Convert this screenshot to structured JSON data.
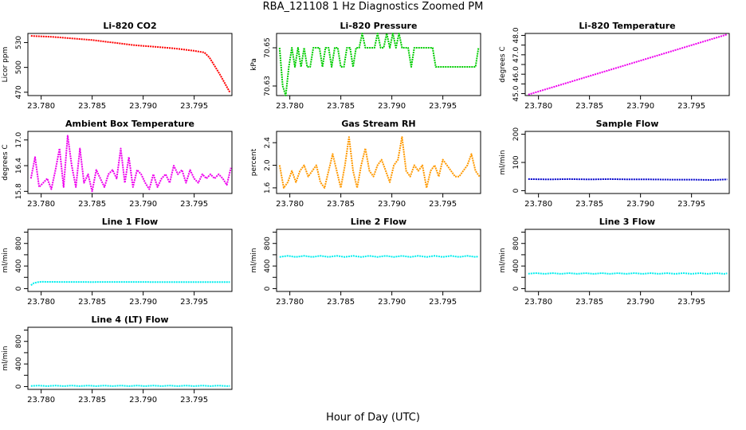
{
  "figure": {
    "title": "RBA_121108  1 Hz Diagnostics Zoomed PM",
    "xlabel": "Hour of Day (UTC)"
  },
  "chart_data": [
    {
      "id": "co2",
      "type": "line",
      "title": "Li-820 CO2",
      "ylabel": "Licor ppm",
      "color": "#ff0000",
      "xlim": [
        23.7787,
        23.7987
      ],
      "ylim": [
        466,
        541
      ],
      "xticks": [
        23.78,
        23.785,
        23.79,
        23.795
      ],
      "xtick_labels": [
        "23.780",
        "23.785",
        "23.790",
        "23.795"
      ],
      "yticks": [
        470,
        500,
        530
      ],
      "ytick_labels": [
        "470",
        "500",
        "530"
      ],
      "series": [
        {
          "name": "CO2",
          "x": [
            23.779,
            23.781,
            23.783,
            23.785,
            23.787,
            23.789,
            23.791,
            23.793,
            23.795,
            23.796,
            23.7965,
            23.797,
            23.7975,
            23.798,
            23.7985
          ],
          "y": [
            538,
            537,
            535,
            533,
            530,
            527,
            525,
            523,
            520,
            518,
            512,
            502,
            492,
            481,
            470
          ]
        }
      ]
    },
    {
      "id": "pressure",
      "type": "line",
      "title": "Li-820 Pressure",
      "ylabel": "kPa",
      "color": "#00cc00",
      "xlim": [
        23.7787,
        23.7987
      ],
      "ylim": [
        70.625,
        70.6575
      ],
      "xticks": [
        23.78,
        23.785,
        23.79,
        23.795
      ],
      "xtick_labels": [
        "23.780",
        "23.785",
        "23.790",
        "23.795"
      ],
      "yticks": [
        70.63,
        70.65
      ],
      "ytick_labels": [
        "70.63",
        "70.65"
      ],
      "series": [
        {
          "name": "Pressure",
          "x": [
            23.779,
            23.7793,
            23.7796,
            23.7799,
            23.7802,
            23.7805,
            23.7808,
            23.7811,
            23.7814,
            23.7817,
            23.782,
            23.7823,
            23.7826,
            23.7829,
            23.7832,
            23.7835,
            23.7838,
            23.7841,
            23.7844,
            23.7847,
            23.785,
            23.7853,
            23.7856,
            23.7859,
            23.7862,
            23.7865,
            23.7868,
            23.7871,
            23.7874,
            23.7877,
            23.788,
            23.7883,
            23.7886,
            23.7889,
            23.7892,
            23.7895,
            23.7898,
            23.7901,
            23.7904,
            23.7907,
            23.791,
            23.7913,
            23.7916,
            23.7919,
            23.7922,
            23.7925,
            23.7928,
            23.7931,
            23.7934,
            23.7937,
            23.794,
            23.7943,
            23.7946,
            23.7949,
            23.7952,
            23.7955,
            23.7958,
            23.7961,
            23.7964,
            23.7967,
            23.797,
            23.7973,
            23.7976,
            23.7979,
            23.7982,
            23.7985
          ],
          "y": [
            70.65,
            70.63,
            70.625,
            70.64,
            70.65,
            70.64,
            70.65,
            70.64,
            70.65,
            70.64,
            70.64,
            70.65,
            70.65,
            70.65,
            70.64,
            70.65,
            70.65,
            70.64,
            70.65,
            70.65,
            70.64,
            70.64,
            70.65,
            70.65,
            70.64,
            70.65,
            70.65,
            70.6575,
            70.65,
            70.65,
            70.65,
            70.65,
            70.6575,
            70.65,
            70.65,
            70.6575,
            70.65,
            70.6575,
            70.65,
            70.6575,
            70.65,
            70.65,
            70.65,
            70.64,
            70.65,
            70.65,
            70.65,
            70.65,
            70.65,
            70.65,
            70.65,
            70.64,
            70.64,
            70.64,
            70.64,
            70.64,
            70.64,
            70.64,
            70.64,
            70.64,
            70.64,
            70.64,
            70.64,
            70.64,
            70.64,
            70.65
          ]
        }
      ]
    },
    {
      "id": "temperature",
      "type": "line",
      "title": "Li-820 Temperature",
      "ylabel": "degrees C",
      "color": "#ee00ee",
      "xlim": [
        23.7787,
        23.7987
      ],
      "ylim": [
        44.9,
        48.1
      ],
      "xticks": [
        23.78,
        23.785,
        23.79,
        23.795
      ],
      "xtick_labels": [
        "23.780",
        "23.785",
        "23.790",
        "23.795"
      ],
      "yticks": [
        45.0,
        45.5,
        46.0,
        46.5,
        47.0,
        47.5,
        48.0
      ],
      "ytick_labels": [
        "45.0",
        "",
        "46.0",
        "",
        "47.0",
        "",
        "48.0"
      ],
      "series": [
        {
          "name": "Temperature",
          "x": [
            23.779,
            23.7985
          ],
          "y": [
            44.95,
            48.05
          ]
        }
      ]
    },
    {
      "id": "ambient",
      "type": "line",
      "title": "Ambient Box Temperature",
      "ylabel": "degrees C",
      "color": "#ee00ee",
      "xlim": [
        23.7787,
        23.7987
      ],
      "ylim": [
        15.75,
        17.2
      ],
      "xticks": [
        23.78,
        23.785,
        23.79,
        23.795
      ],
      "xtick_labels": [
        "23.780",
        "23.785",
        "23.790",
        "23.795"
      ],
      "yticks": [
        15.8,
        16.4,
        17.0
      ],
      "ytick_labels": [
        "15.8",
        "16.4",
        "17.0"
      ],
      "series": [
        {
          "name": "Ambient",
          "x": [
            23.779,
            23.7794,
            23.7798,
            23.7802,
            23.7806,
            23.781,
            23.7814,
            23.7818,
            23.7822,
            23.7826,
            23.783,
            23.7834,
            23.7838,
            23.7842,
            23.7846,
            23.785,
            23.7854,
            23.7858,
            23.7862,
            23.7866,
            23.787,
            23.7874,
            23.7878,
            23.7882,
            23.7886,
            23.789,
            23.7894,
            23.7898,
            23.7902,
            23.7906,
            23.791,
            23.7914,
            23.7918,
            23.7922,
            23.7926,
            23.793,
            23.7934,
            23.7938,
            23.7942,
            23.7946,
            23.795,
            23.7954,
            23.7958,
            23.7962,
            23.7966,
            23.797,
            23.7974,
            23.7978,
            23.7982,
            23.7986
          ],
          "y": [
            16.1,
            16.6,
            15.9,
            16.0,
            16.1,
            15.85,
            16.3,
            16.8,
            15.9,
            17.1,
            16.4,
            15.9,
            16.8,
            16.0,
            16.2,
            15.8,
            16.3,
            16.1,
            15.9,
            16.2,
            16.3,
            16.1,
            16.8,
            16.0,
            16.6,
            15.9,
            16.3,
            16.2,
            16.0,
            15.85,
            16.2,
            15.9,
            16.1,
            16.2,
            16.0,
            16.4,
            16.2,
            16.3,
            16.0,
            16.3,
            16.1,
            16.0,
            16.2,
            16.1,
            16.2,
            16.1,
            16.2,
            16.1,
            15.95,
            16.35
          ]
        }
      ]
    },
    {
      "id": "rh",
      "type": "line",
      "title": "Gas Stream RH",
      "ylabel": "percent",
      "color": "#ff9900",
      "xlim": [
        23.7787,
        23.7987
      ],
      "ylim": [
        1.5,
        2.6
      ],
      "xticks": [
        23.78,
        23.785,
        23.79,
        23.795
      ],
      "xtick_labels": [
        "23.780",
        "23.785",
        "23.790",
        "23.795"
      ],
      "yticks": [
        1.6,
        2.0,
        2.4
      ],
      "ytick_labels": [
        "1.6",
        "2.0",
        "2.4"
      ],
      "series": [
        {
          "name": "RH",
          "x": [
            23.779,
            23.7794,
            23.7798,
            23.7802,
            23.7806,
            23.781,
            23.7814,
            23.7818,
            23.7822,
            23.7826,
            23.783,
            23.7834,
            23.7838,
            23.7842,
            23.7846,
            23.785,
            23.7854,
            23.7858,
            23.7862,
            23.7866,
            23.787,
            23.7874,
            23.7878,
            23.7882,
            23.7886,
            23.789,
            23.7894,
            23.7898,
            23.7902,
            23.7906,
            23.791,
            23.7914,
            23.7918,
            23.7922,
            23.7926,
            23.793,
            23.7934,
            23.7938,
            23.7942,
            23.7946,
            23.795,
            23.7954,
            23.7958,
            23.7962,
            23.7966,
            23.797,
            23.7974,
            23.7978,
            23.7982,
            23.7986
          ],
          "y": [
            2.0,
            1.6,
            1.7,
            1.9,
            1.7,
            1.9,
            2.0,
            1.8,
            1.9,
            2.0,
            1.7,
            1.6,
            1.9,
            2.2,
            1.9,
            1.6,
            2.0,
            2.5,
            1.9,
            1.6,
            2.0,
            2.3,
            1.9,
            1.8,
            2.0,
            2.1,
            1.9,
            1.7,
            2.0,
            2.1,
            2.5,
            1.9,
            1.8,
            2.0,
            1.9,
            2.0,
            1.6,
            1.9,
            2.0,
            1.8,
            2.1,
            2.0,
            1.9,
            1.8,
            1.8,
            1.9,
            2.0,
            2.2,
            1.9,
            1.8
          ]
        }
      ]
    },
    {
      "id": "sample_flow",
      "type": "line",
      "title": "Sample Flow",
      "ylabel": "ml/min",
      "color": "#0000cc",
      "xlim": [
        23.7787,
        23.7987
      ],
      "ylim": [
        -10,
        210
      ],
      "xticks": [
        23.78,
        23.785,
        23.79,
        23.795
      ],
      "xtick_labels": [
        "23.780",
        "23.785",
        "23.790",
        "23.795"
      ],
      "yticks": [
        0,
        100,
        200
      ],
      "ytick_labels": [
        "0",
        "100",
        "200"
      ],
      "series": [
        {
          "name": "Sample Flow",
          "x": [
            23.779,
            23.781,
            23.783,
            23.785,
            23.787,
            23.789,
            23.791,
            23.793,
            23.795,
            23.797,
            23.7985
          ],
          "y": [
            41,
            40,
            41,
            40,
            41,
            40,
            40,
            39,
            39,
            38,
            40
          ]
        }
      ]
    },
    {
      "id": "line1",
      "type": "line",
      "title": "Line 1 Flow",
      "ylabel": "ml/min",
      "color": "#00eeee",
      "xlim": [
        23.7787,
        23.7987
      ],
      "ylim": [
        -50,
        1050
      ],
      "xticks": [
        23.78,
        23.785,
        23.79,
        23.795
      ],
      "xtick_labels": [
        "23.780",
        "23.785",
        "23.790",
        "23.795"
      ],
      "yticks": [
        0,
        200,
        400,
        600,
        800,
        1000
      ],
      "ytick_labels": [
        "0",
        "",
        "400",
        "",
        "800",
        ""
      ],
      "series": [
        {
          "name": "Line 1",
          "x": [
            23.779,
            23.7793,
            23.7797,
            23.78,
            23.782,
            23.785,
            23.788,
            23.791,
            23.794,
            23.7985
          ],
          "y": [
            60,
            100,
            115,
            120,
            118,
            117,
            118,
            117,
            117,
            117
          ]
        }
      ]
    },
    {
      "id": "line2",
      "type": "line",
      "title": "Line 2 Flow",
      "ylabel": "ml/min",
      "color": "#00eeee",
      "xlim": [
        23.7787,
        23.7987
      ],
      "ylim": [
        -50,
        1050
      ],
      "xticks": [
        23.78,
        23.785,
        23.79,
        23.795
      ],
      "xtick_labels": [
        "23.780",
        "23.785",
        "23.790",
        "23.795"
      ],
      "yticks": [
        0,
        200,
        400,
        600,
        800,
        1000
      ],
      "ytick_labels": [
        "0",
        "",
        "400",
        "",
        "800",
        ""
      ],
      "series": [
        {
          "name": "Line 2",
          "x": [
            23.779,
            23.7798,
            23.7806,
            23.7814,
            23.7822,
            23.783,
            23.7838,
            23.7846,
            23.7854,
            23.7862,
            23.787,
            23.7878,
            23.7886,
            23.7894,
            23.7902,
            23.791,
            23.7918,
            23.7926,
            23.7934,
            23.7942,
            23.795,
            23.7958,
            23.7966,
            23.7974,
            23.7982,
            23.7985
          ],
          "y": [
            560,
            580,
            560,
            580,
            560,
            580,
            560,
            580,
            560,
            580,
            560,
            580,
            560,
            580,
            560,
            580,
            560,
            580,
            560,
            580,
            560,
            580,
            560,
            580,
            560,
            570
          ]
        }
      ]
    },
    {
      "id": "line3",
      "type": "line",
      "title": "Line 3 Flow",
      "ylabel": "ml/min",
      "color": "#00eeee",
      "xlim": [
        23.7787,
        23.7987
      ],
      "ylim": [
        -50,
        1050
      ],
      "xticks": [
        23.78,
        23.785,
        23.79,
        23.795
      ],
      "xtick_labels": [
        "23.780",
        "23.785",
        "23.790",
        "23.795"
      ],
      "yticks": [
        0,
        200,
        400,
        600,
        800,
        1000
      ],
      "ytick_labels": [
        "0",
        "",
        "400",
        "",
        "800",
        ""
      ],
      "series": [
        {
          "name": "Line 3",
          "x": [
            23.779,
            23.7798,
            23.7806,
            23.7814,
            23.7822,
            23.783,
            23.7838,
            23.7846,
            23.7854,
            23.7862,
            23.787,
            23.7878,
            23.7886,
            23.7894,
            23.7902,
            23.791,
            23.7918,
            23.7926,
            23.7934,
            23.7942,
            23.795,
            23.7958,
            23.7966,
            23.7974,
            23.7982,
            23.7985
          ],
          "y": [
            265,
            275,
            262,
            275,
            262,
            275,
            262,
            275,
            262,
            275,
            262,
            275,
            262,
            275,
            262,
            275,
            262,
            275,
            262,
            275,
            262,
            275,
            262,
            275,
            262,
            270
          ]
        }
      ]
    },
    {
      "id": "line4",
      "type": "line",
      "title": "Line 4 (LT) Flow",
      "ylabel": "ml/min",
      "color": "#00eeee",
      "xlim": [
        23.7787,
        23.7987
      ],
      "ylim": [
        -50,
        1050
      ],
      "xticks": [
        23.78,
        23.785,
        23.79,
        23.795
      ],
      "xtick_labels": [
        "23.780",
        "23.785",
        "23.790",
        "23.795"
      ],
      "yticks": [
        0,
        200,
        400,
        600,
        800,
        1000
      ],
      "ytick_labels": [
        "0",
        "",
        "400",
        "",
        "800",
        ""
      ],
      "series": [
        {
          "name": "Line 4",
          "x": [
            23.779,
            23.7798,
            23.7806,
            23.7814,
            23.7822,
            23.783,
            23.7838,
            23.7846,
            23.7854,
            23.7862,
            23.787,
            23.7878,
            23.7886,
            23.7894,
            23.7902,
            23.791,
            23.7918,
            23.7926,
            23.7934,
            23.7942,
            23.795,
            23.7958,
            23.7966,
            23.7974,
            23.7982,
            23.7985
          ],
          "y": [
            10,
            18,
            8,
            18,
            8,
            18,
            8,
            18,
            8,
            18,
            8,
            18,
            8,
            18,
            8,
            18,
            8,
            18,
            8,
            18,
            8,
            18,
            8,
            18,
            8,
            12
          ]
        }
      ]
    }
  ]
}
